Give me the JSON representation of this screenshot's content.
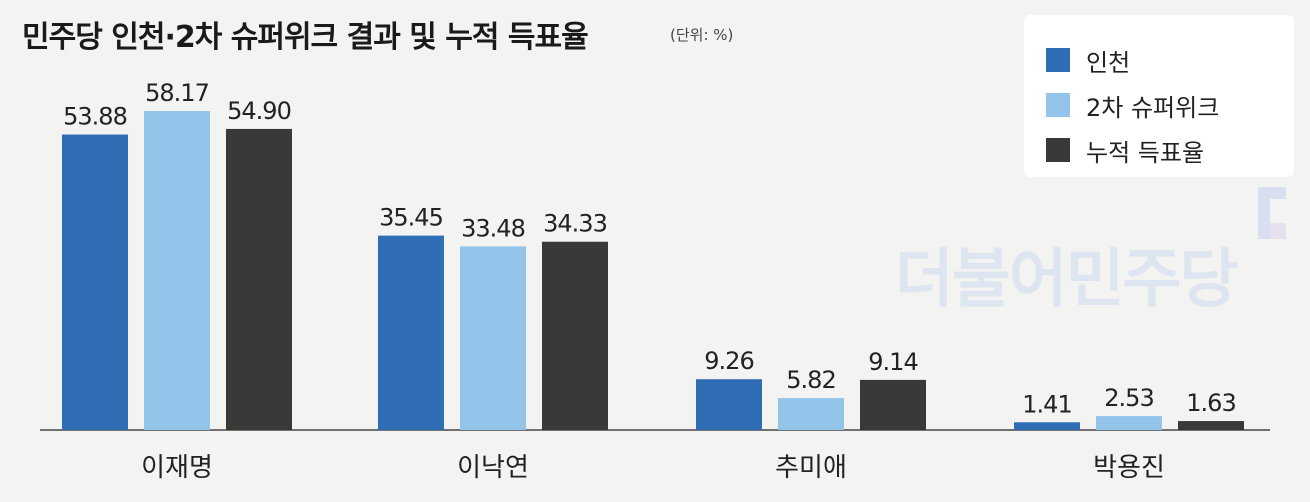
{
  "title": "민주당 인천·2차 슈퍼위크 결과 및 누적 득표율",
  "unit": "(단위: %)",
  "watermark": "더불어민주당",
  "colors": {
    "incheon": "#2f6db5",
    "super_week_2": "#93c4ea",
    "cumulative": "#3b3938",
    "axis": "#444444"
  },
  "chart_data": {
    "type": "bar",
    "categories": [
      "이재명",
      "이낙연",
      "추미애",
      "박용진"
    ],
    "series": [
      {
        "name": "인천",
        "values": [
          53.88,
          35.45,
          9.26,
          1.41
        ]
      },
      {
        "name": "2차 슈퍼위크",
        "values": [
          58.17,
          33.48,
          5.82,
          2.53
        ]
      },
      {
        "name": "누적 득표율",
        "values": [
          54.9,
          34.33,
          9.14,
          1.63
        ]
      }
    ],
    "value_labels": [
      [
        "53.88",
        "35.45",
        "9.26",
        "1.41"
      ],
      [
        "58.17",
        "33.48",
        "5.82",
        "2.53"
      ],
      [
        "54.90",
        "34.33",
        "9.14",
        "1.63"
      ]
    ],
    "ylim": [
      0,
      62
    ],
    "legend_position": "top-right",
    "grid": false
  }
}
